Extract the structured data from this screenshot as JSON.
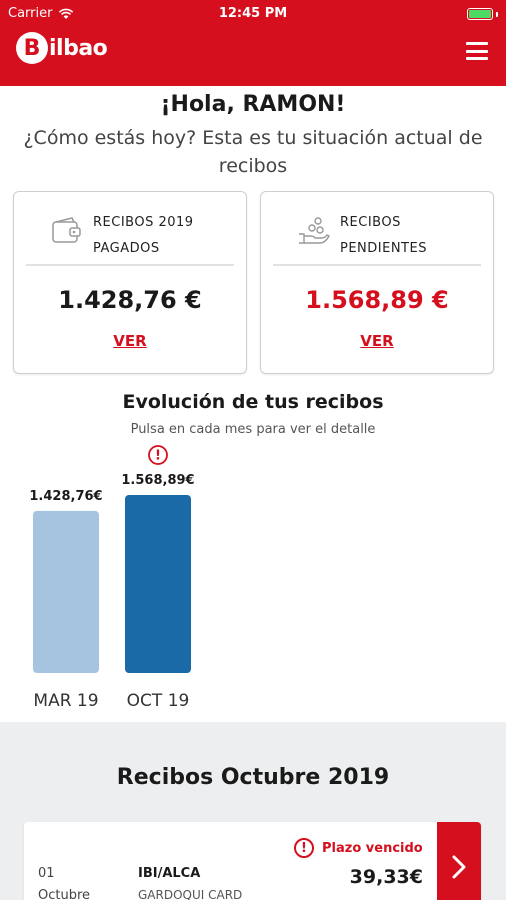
{
  "status_bar": {
    "carrier": "Carrier",
    "time": "12:45 PM"
  },
  "header": {
    "logo_letter": "B",
    "logo_text": "ilbao",
    "menu_icon": "hamburger-menu-icon"
  },
  "greeting": {
    "title": "¡Hola, RAMON!",
    "subtitle": "¿Cómo estás hoy? Esta es tu situación actual de recibos"
  },
  "cards": [
    {
      "label_line1": "RECIBOS 2019",
      "label_line2": "PAGADOS",
      "amount": "1.428,76 €",
      "link": "VER",
      "icon": "wallet-icon"
    },
    {
      "label_line1": "RECIBOS",
      "label_line2": "PENDIENTES",
      "amount": "1.568,89 €",
      "link": "VER",
      "icon": "hand-coins-icon"
    }
  ],
  "evolution": {
    "title": "Evolución de tus recibos",
    "subtitle": "Pulsa en cada mes para ver el detalle"
  },
  "chart_data": {
    "type": "bar",
    "categories": [
      "MAR 19",
      "OCT 19"
    ],
    "values": [
      1428.76,
      1568.89
    ],
    "value_labels": [
      "1.428,76€",
      "1.568,89€"
    ],
    "colors": [
      "#a6c4e0",
      "#1a6aa8"
    ],
    "warning_on": [
      "OCT 19"
    ],
    "ylim": [
      0,
      1568.89
    ]
  },
  "recibos": {
    "title": "Recibos Octubre 2019",
    "item": {
      "day": "01",
      "month": "Octubre",
      "concept": "IBI/ALCA",
      "concept_detail": "GARDOQUI CARD",
      "status": "Plazo vencido",
      "amount": "39,33€"
    }
  },
  "colors": {
    "brand": "#d50f1e",
    "bar_paid": "#a6c4e0",
    "bar_pending": "#1a6aa8"
  }
}
